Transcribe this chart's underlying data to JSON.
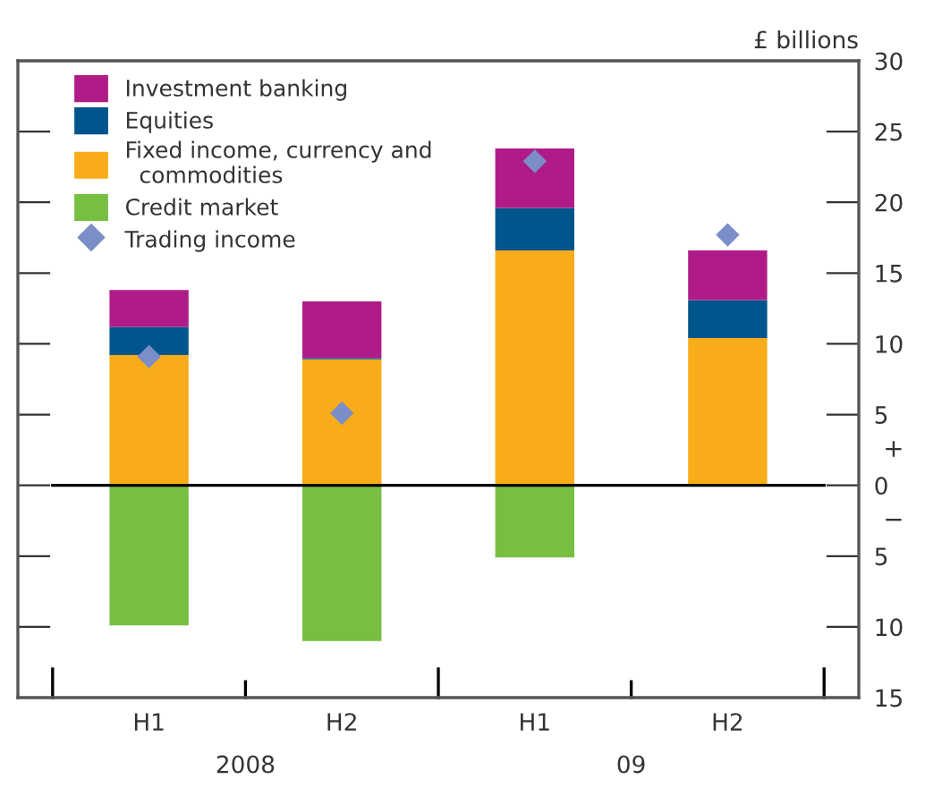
{
  "chart_data": {
    "type": "bar",
    "stacked": true,
    "ylabel": "£ billions",
    "categories": [
      "H1",
      "H2",
      "H1",
      "H2"
    ],
    "series": [
      {
        "name": "Fixed income, currency and\n  commodities",
        "color": "#f8ac1a",
        "values": [
          9.2,
          8.9,
          16.6,
          10.4
        ]
      },
      {
        "name": "Equities",
        "color": "#00558c",
        "values": [
          2.0,
          0.1,
          3.0,
          2.7
        ]
      },
      {
        "name": "Investment banking",
        "color": "#b01c87",
        "values": [
          2.6,
          4.0,
          4.2,
          3.5
        ]
      },
      {
        "name": "Credit market",
        "color": "#76bf43",
        "values": [
          -9.9,
          -11.0,
          -5.1,
          0
        ]
      },
      {
        "name": "Trading income",
        "type": "scatter",
        "marker": "diamond",
        "color": "#7b8ec8",
        "values": [
          9.1,
          5.1,
          22.9,
          17.7
        ]
      }
    ],
    "ylim": [
      -15,
      30
    ],
    "yticks": [
      {
        "value": -15,
        "label": "15"
      },
      {
        "value": -10,
        "label": "10"
      },
      {
        "value": -5,
        "label": "5"
      },
      0,
      5,
      10,
      15,
      20,
      25,
      30
    ],
    "ref_lines": [
      {
        "axis": "y",
        "value": 0,
        "color": "#000000"
      }
    ],
    "annotations": [
      "2008",
      "09",
      "+",
      "−"
    ],
    "legend": "top left",
    "grid": false
  }
}
